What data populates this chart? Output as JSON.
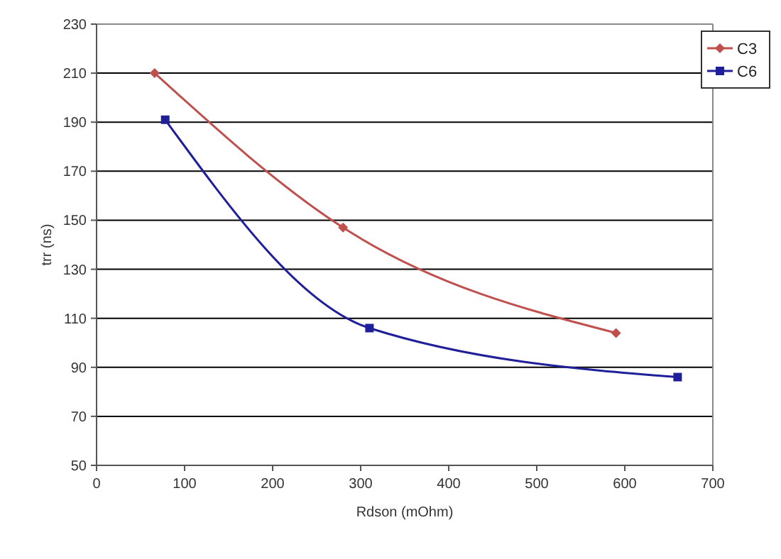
{
  "chart_data": {
    "type": "line",
    "xlabel": "Rdson (mOhm)",
    "ylabel": "trr (ns)",
    "xlim": [
      0,
      700
    ],
    "xticks": [
      0,
      100,
      200,
      300,
      400,
      500,
      600,
      700
    ],
    "ylim": [
      50,
      230
    ],
    "yticks": [
      50,
      70,
      90,
      110,
      130,
      150,
      170,
      190,
      210,
      230
    ],
    "grid": "y",
    "legend": "top right",
    "series": [
      {
        "name": "C3",
        "color": "#c0504d",
        "marker": "diamond",
        "x": [
          66,
          280,
          590
        ],
        "values": [
          210,
          147,
          104
        ]
      },
      {
        "name": "C6",
        "color": "#1f1f9a",
        "marker": "square",
        "x": [
          78,
          310,
          660
        ],
        "values": [
          191,
          106,
          86
        ]
      }
    ]
  }
}
